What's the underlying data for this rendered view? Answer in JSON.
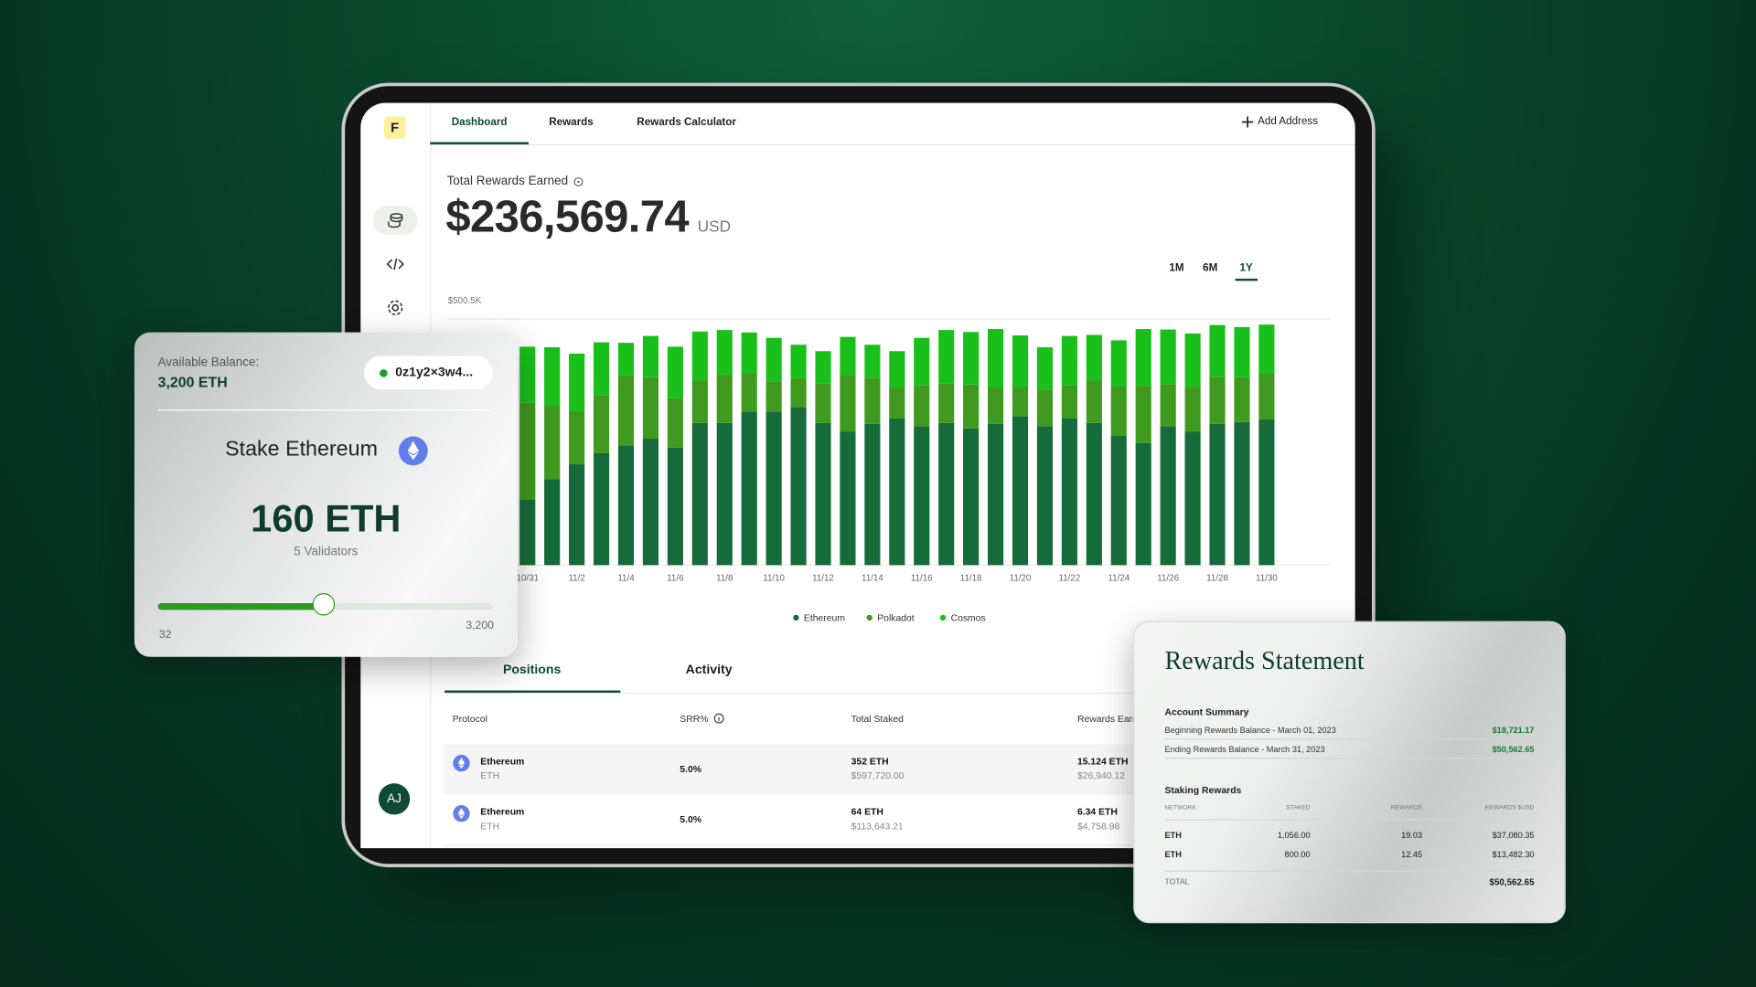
{
  "sidebar": {
    "logo": "F",
    "avatar": "AJ"
  },
  "nav": {
    "tabs": [
      "Dashboard",
      "Rewards",
      "Rewards Calculator"
    ],
    "add_address": "Add Address"
  },
  "summary": {
    "label": "Total Rewards Earned",
    "amount": "$236,569.74",
    "currency": "USD"
  },
  "range_buttons": [
    "1M",
    "6M",
    "1Y"
  ],
  "chart_data": {
    "type": "bar",
    "stacked": true,
    "categories": [
      "10/31",
      null,
      "11/2",
      null,
      "11/4",
      null,
      "11/6",
      null,
      "11/8",
      null,
      "11/10",
      null,
      "11/12",
      null,
      "11/14",
      null,
      "11/16",
      null,
      "11/18",
      null,
      "11/20",
      null,
      "11/22",
      null,
      "11/24",
      null,
      "11/26",
      null,
      "11/28",
      null,
      "11/30"
    ],
    "series": [
      {
        "name": "Ethereum",
        "color": "#166b3a",
        "values": [
          134,
          175,
          205,
          228,
          243,
          257,
          239,
          289,
          289,
          312,
          312,
          321,
          289,
          271,
          287,
          298,
          282,
          289,
          278,
          287,
          303,
          282,
          298,
          289,
          264,
          248,
          282,
          271,
          287,
          291,
          296
        ]
      },
      {
        "name": "Polkadot",
        "color": "#3f9a1f",
        "values": [
          196,
          150,
          109,
          118,
          143,
          125,
          100,
          86,
          98,
          77,
          61,
          59,
          80,
          116,
          93,
          64,
          84,
          80,
          89,
          75,
          59,
          75,
          68,
          86,
          100,
          116,
          86,
          91,
          96,
          91,
          93
        ]
      },
      {
        "name": "Cosmos",
        "color": "#19c019",
        "values": [
          114,
          118,
          116,
          107,
          66,
          84,
          105,
          100,
          91,
          84,
          89,
          68,
          66,
          77,
          68,
          73,
          96,
          109,
          107,
          118,
          105,
          86,
          100,
          93,
          93,
          116,
          111,
          109,
          105,
          102,
          100
        ]
      }
    ],
    "ylim": [
      0,
      500.5
    ],
    "yticks": [
      {
        "value": 500.5,
        "label": "$500.5K"
      }
    ],
    "grid": true,
    "legend": "bottom"
  },
  "positions": {
    "tabs": [
      "Positions",
      "Activity"
    ],
    "columns": [
      "Protocol",
      "SRR%",
      "Total Staked",
      "Rewards Earned"
    ],
    "rows": [
      {
        "protocol": "Ethereum",
        "symbol": "ETH",
        "srr": "5.0%",
        "staked": "352 ETH",
        "staked_usd": "$597,720.00",
        "rewards": "15.124 ETH",
        "rewards_usd": "$26,940.12"
      },
      {
        "protocol": "Ethereum",
        "symbol": "ETH",
        "srr": "5.0%",
        "staked": "64 ETH",
        "staked_usd": "$113,643.21",
        "rewards": "6.34 ETH",
        "rewards_usd": "$4,758.98"
      }
    ]
  },
  "stake_card": {
    "balance_label": "Available Balance:",
    "balance": "3,200 ETH",
    "address": "0z1y2×3w4...",
    "title": "Stake Ethereum",
    "amount": "160 ETH",
    "validators": "5 Validators",
    "slider_min": "32",
    "slider_max": "3,200"
  },
  "statement": {
    "title": "Rewards Statement",
    "summary_heading": "Account Summary",
    "summary_lines": [
      [
        "Beginning Rewards Balance - March 01, 2023",
        "$18,721.17"
      ],
      [
        "Ending Rewards Balance - March 31, 2023",
        "$50,562.65"
      ]
    ],
    "rewards_heading": "Staking Rewards",
    "columns": [
      "NETWORK",
      "STAKED",
      "REWARDS",
      "REWARDS $USD"
    ],
    "rows": [
      [
        "ETH",
        "1,056.00",
        "19.03",
        "$37,080.35"
      ],
      [
        "ETH",
        "800.00",
        "12.45",
        "$13,482.30"
      ]
    ],
    "total": [
      "TOTAL",
      "$50,562.65"
    ]
  }
}
